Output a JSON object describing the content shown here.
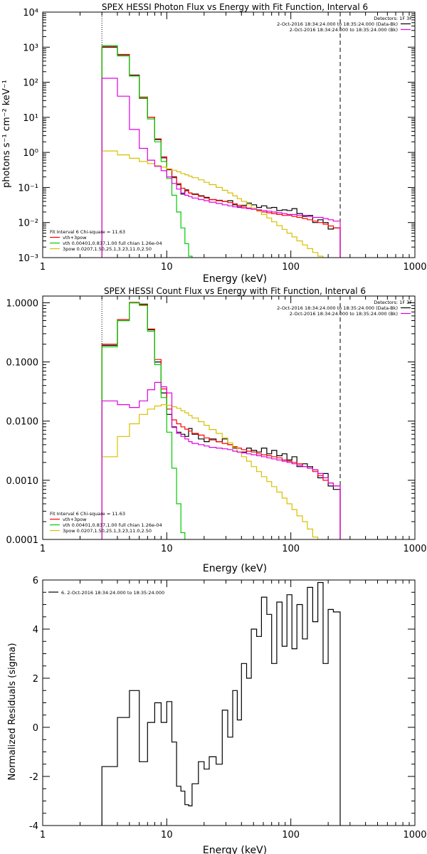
{
  "chart_data": [
    {
      "type": "line",
      "title": "SPEX HESSI Photon Flux vs Energy with Fit Function, Interval 6",
      "xlabel": "Energy (keV)",
      "ylabel": "photons s⁻¹ cm⁻² keV⁻¹",
      "xscale": "log",
      "yscale": "log",
      "xlim": [
        1,
        1000
      ],
      "ylim": [
        0.001,
        10000
      ],
      "x_ticks": [
        1,
        10,
        100,
        1000
      ],
      "x_tick_labels": [
        "1",
        "10",
        "100",
        "1000"
      ],
      "y_ticks": [
        0.001,
        0.01,
        0.1,
        1,
        10,
        100,
        1000,
        10000
      ],
      "y_tick_labels": [
        "10⁻³",
        "10⁻²",
        "10⁻¹",
        "10⁰",
        "10¹",
        "10²",
        "10³",
        "10⁴"
      ],
      "vlines": [
        3,
        250
      ],
      "legend_header": [
        "Detectors: 1F 3F"
      ],
      "legend_top": [
        {
          "text": "2-Oct-2016 18:34:24.000 to 18:35:24.000 (Data-Bk)",
          "color": "#000000"
        },
        {
          "text": "2-Oct-2016 18:34:24.000 to 18:35:24.000 (Bk)",
          "color": "#e000e0"
        }
      ],
      "legend_bottom_header": "Fit Interval 6   Chi-square = 11.63",
      "legend_bottom": [
        {
          "text": "vth+3pow",
          "color": "#ff0000"
        },
        {
          "text": "vth 0.00401,0.837,1.00  full chian 1.26e-04",
          "color": "#00cc00"
        },
        {
          "text": "3pow 0.0207,1.50,25.1,3.23,11.0,2.50",
          "color": "#d8c000"
        }
      ],
      "x_edges": [
        3,
        4,
        5,
        6,
        7,
        8,
        9,
        10,
        11,
        12,
        13,
        14,
        15,
        16,
        18,
        20,
        22,
        25,
        28,
        31,
        34,
        37,
        40,
        44,
        48,
        53,
        58,
        64,
        70,
        77,
        85,
        93,
        102,
        112,
        124,
        136,
        150,
        165,
        182,
        200,
        220,
        250
      ],
      "series": [
        {
          "color": "#000000",
          "values": [
            1000,
            600,
            160,
            35,
            10,
            2.4,
            0.7,
            0.32,
            0.2,
            0.12,
            0.065,
            0.085,
            0.07,
            0.065,
            0.058,
            0.052,
            0.045,
            0.043,
            0.04,
            0.042,
            0.032,
            0.028,
            0.031,
            0.036,
            0.032,
            0.027,
            0.03,
            0.026,
            0.027,
            0.022,
            0.023,
            0.022,
            0.025,
            0.018,
            0.015,
            0.016,
            0.01,
            0.012,
            0.01,
            0.0065,
            0.007
          ]
        },
        {
          "color": "#ff0000",
          "values": [
            1050,
            620,
            155,
            38,
            10,
            2.3,
            0.75,
            0.33,
            0.19,
            0.13,
            0.095,
            0.08,
            0.07,
            0.063,
            0.056,
            0.05,
            0.045,
            0.042,
            0.04,
            0.037,
            0.034,
            0.031,
            0.028,
            0.026,
            0.024,
            0.022,
            0.02,
            0.019,
            0.018,
            0.017,
            0.016,
            0.016,
            0.015,
            0.014,
            0.013,
            0.012,
            0.011,
            0.01,
            0.009,
            0.008,
            0.007
          ]
        },
        {
          "color": "#00cc00",
          "values": [
            1100,
            560,
            150,
            36,
            9,
            2.0,
            0.55,
            0.18,
            0.06,
            0.02,
            0.007,
            0.0025,
            0.0011,
            0.0004
          ]
        },
        {
          "color": "#d8c000",
          "values": [
            1.1,
            0.85,
            0.68,
            0.55,
            0.48,
            0.42,
            0.38,
            0.34,
            0.31,
            0.28,
            0.25,
            0.23,
            0.21,
            0.19,
            0.165,
            0.14,
            0.12,
            0.1,
            0.083,
            0.07,
            0.058,
            0.048,
            0.04,
            0.033,
            0.026,
            0.021,
            0.017,
            0.0135,
            0.0105,
            0.0082,
            0.0064,
            0.005,
            0.0039,
            0.003,
            0.0023,
            0.0018,
            0.0014,
            0.0011
          ]
        },
        {
          "color": "#e000e0",
          "values": [
            130,
            40,
            4.5,
            1.3,
            0.6,
            0.4,
            0.3,
            0.2,
            0.13,
            0.09,
            0.07,
            0.06,
            0.055,
            0.05,
            0.045,
            0.042,
            0.038,
            0.035,
            0.032,
            0.03,
            0.028,
            0.027,
            0.026,
            0.025,
            0.024,
            0.023,
            0.022,
            0.021,
            0.02,
            0.019,
            0.018,
            0.017,
            0.017,
            0.016,
            0.016,
            0.015,
            0.014,
            0.014,
            0.013,
            0.012,
            0.011
          ]
        }
      ]
    },
    {
      "type": "line",
      "title": "SPEX HESSI Count Flux vs Energy with Fit Function, Interval 6",
      "xlabel": "Energy (keV)",
      "ylabel": "",
      "xscale": "log",
      "yscale": "log",
      "xlim": [
        1,
        1000
      ],
      "ylim": [
        0.0001,
        1.3
      ],
      "x_ticks": [
        1,
        10,
        100,
        1000
      ],
      "x_tick_labels": [
        "1",
        "10",
        "100",
        "1000"
      ],
      "y_ticks": [
        0.0001,
        0.001,
        0.01,
        0.1,
        1
      ],
      "y_tick_labels": [
        "0.0001",
        "0.0010",
        "0.0100",
        "0.1000",
        "1.0000"
      ],
      "vlines": [
        3,
        250
      ],
      "legend_header": [
        "Detectors: 1F 3F"
      ],
      "legend_top": [
        {
          "text": "2-Oct-2016 18:34:24.000 to 18:35:24.000 (Data-Bk)",
          "color": "#000000"
        },
        {
          "text": "2-Oct-2016 18:34:24.000 to 18:35:24.000 (Bk)",
          "color": "#e000e0"
        }
      ],
      "legend_bottom_header": "Fit Interval 6   Chi-square = 11.63",
      "legend_bottom": [
        {
          "text": "vth+3pow",
          "color": "#ff0000"
        },
        {
          "text": "vth 0.00401,0.837,1.00  full chian 1.26e-04",
          "color": "#00cc00"
        },
        {
          "text": "3pow 0.0207,1.50,25.1,3.23,11.0,2.50",
          "color": "#d8c000"
        }
      ],
      "x_edges": [
        3,
        4,
        5,
        6,
        7,
        8,
        9,
        10,
        11,
        12,
        13,
        14,
        15,
        16,
        18,
        20,
        22,
        25,
        28,
        31,
        34,
        37,
        40,
        44,
        48,
        53,
        58,
        64,
        70,
        77,
        85,
        93,
        102,
        112,
        124,
        136,
        150,
        165,
        182,
        200,
        220,
        250
      ],
      "series": [
        {
          "color": "#000000",
          "values": [
            0.19,
            0.5,
            1.0,
            0.95,
            0.35,
            0.1,
            0.03,
            0.013,
            0.008,
            0.0065,
            0.006,
            0.0055,
            0.0075,
            0.006,
            0.005,
            0.0045,
            0.005,
            0.0045,
            0.005,
            0.004,
            0.0035,
            0.003,
            0.003,
            0.0035,
            0.0032,
            0.003,
            0.0035,
            0.0028,
            0.0032,
            0.0026,
            0.0028,
            0.0022,
            0.0025,
            0.0017,
            0.0019,
            0.0017,
            0.0015,
            0.0011,
            0.0013,
            0.0008,
            0.0007
          ]
        },
        {
          "color": "#ff0000",
          "values": [
            0.2,
            0.52,
            1.02,
            0.93,
            0.36,
            0.11,
            0.035,
            0.016,
            0.0105,
            0.009,
            0.008,
            0.0073,
            0.0068,
            0.0062,
            0.0058,
            0.0052,
            0.0048,
            0.0045,
            0.0042,
            0.004,
            0.0037,
            0.0035,
            0.0033,
            0.0031,
            0.003,
            0.0028,
            0.0027,
            0.0026,
            0.0025,
            0.0024,
            0.0022,
            0.0021,
            0.002,
            0.0019,
            0.0017,
            0.0016,
            0.0014,
            0.0012,
            0.001,
            0.0009,
            0.0008
          ]
        },
        {
          "color": "#00cc00",
          "values": [
            0.18,
            0.5,
            1.0,
            0.9,
            0.33,
            0.09,
            0.025,
            0.0065,
            0.0016,
            0.0004,
            0.00013
          ]
        },
        {
          "color": "#d8c000",
          "values": [
            0.0025,
            0.0055,
            0.009,
            0.013,
            0.016,
            0.018,
            0.019,
            0.0185,
            0.0175,
            0.0165,
            0.015,
            0.0138,
            0.0125,
            0.0113,
            0.0098,
            0.0085,
            0.0072,
            0.0062,
            0.0052,
            0.0043,
            0.0036,
            0.003,
            0.0025,
            0.0021,
            0.0017,
            0.0014,
            0.00115,
            0.00095,
            0.00078,
            0.00063,
            0.0005,
            0.0004,
            0.00032,
            0.00025,
            0.0002,
            0.00015,
            0.00011
          ]
        },
        {
          "color": "#e000e0",
          "values": [
            0.022,
            0.019,
            0.017,
            0.022,
            0.034,
            0.045,
            0.038,
            0.03,
            0.0078,
            0.0062,
            0.0055,
            0.005,
            0.0045,
            0.0042,
            0.004,
            0.0038,
            0.0036,
            0.0035,
            0.0034,
            0.0033,
            0.0031,
            0.003,
            0.0029,
            0.0028,
            0.0027,
            0.0026,
            0.0025,
            0.0024,
            0.0023,
            0.0022,
            0.0021,
            0.002,
            0.0019,
            0.0018,
            0.0017,
            0.0016,
            0.0015,
            0.0013,
            0.0011,
            0.0009,
            0.0008
          ]
        }
      ]
    },
    {
      "type": "line",
      "title": "",
      "xlabel": "Energy (keV)",
      "ylabel": "Normalized Residuals (sigma)",
      "xscale": "log",
      "yscale": "linear",
      "xlim": [
        1,
        1000
      ],
      "ylim": [
        -4,
        6
      ],
      "x_ticks": [
        1,
        10,
        100,
        1000
      ],
      "x_tick_labels": [
        "1",
        "10",
        "100",
        "1000"
      ],
      "y_ticks": [
        -4,
        -2,
        0,
        2,
        4,
        6
      ],
      "y_tick_labels": [
        "-4",
        "-2",
        "0",
        "2",
        "4",
        "6"
      ],
      "legend_top": [
        {
          "text": "6.  2-Oct-2016 18:34:24.000 to 18:35:24.000",
          "color": "#000000"
        }
      ],
      "x_edges": [
        3,
        4,
        5,
        6,
        7,
        8,
        9,
        10,
        11,
        12,
        13,
        14,
        15,
        16,
        18,
        20,
        22,
        25,
        28,
        31,
        34,
        37,
        40,
        44,
        48,
        53,
        58,
        64,
        70,
        77,
        85,
        93,
        102,
        112,
        124,
        136,
        150,
        165,
        182,
        200,
        220,
        250
      ],
      "series": [
        {
          "color": "#000000",
          "values": [
            -1.6,
            0.4,
            1.5,
            -1.4,
            0.2,
            1.0,
            0.2,
            1.05,
            -0.6,
            -2.4,
            -2.6,
            -3.15,
            -3.2,
            -2.3,
            -1.4,
            -1.7,
            -1.2,
            -1.5,
            0.7,
            -0.4,
            1.5,
            0.3,
            2.6,
            2.0,
            4.0,
            3.7,
            5.3,
            4.6,
            2.6,
            5.1,
            3.3,
            5.4,
            3.2,
            5.0,
            3.6,
            5.7,
            4.3,
            5.9,
            2.6,
            4.8,
            4.7
          ]
        }
      ]
    }
  ]
}
